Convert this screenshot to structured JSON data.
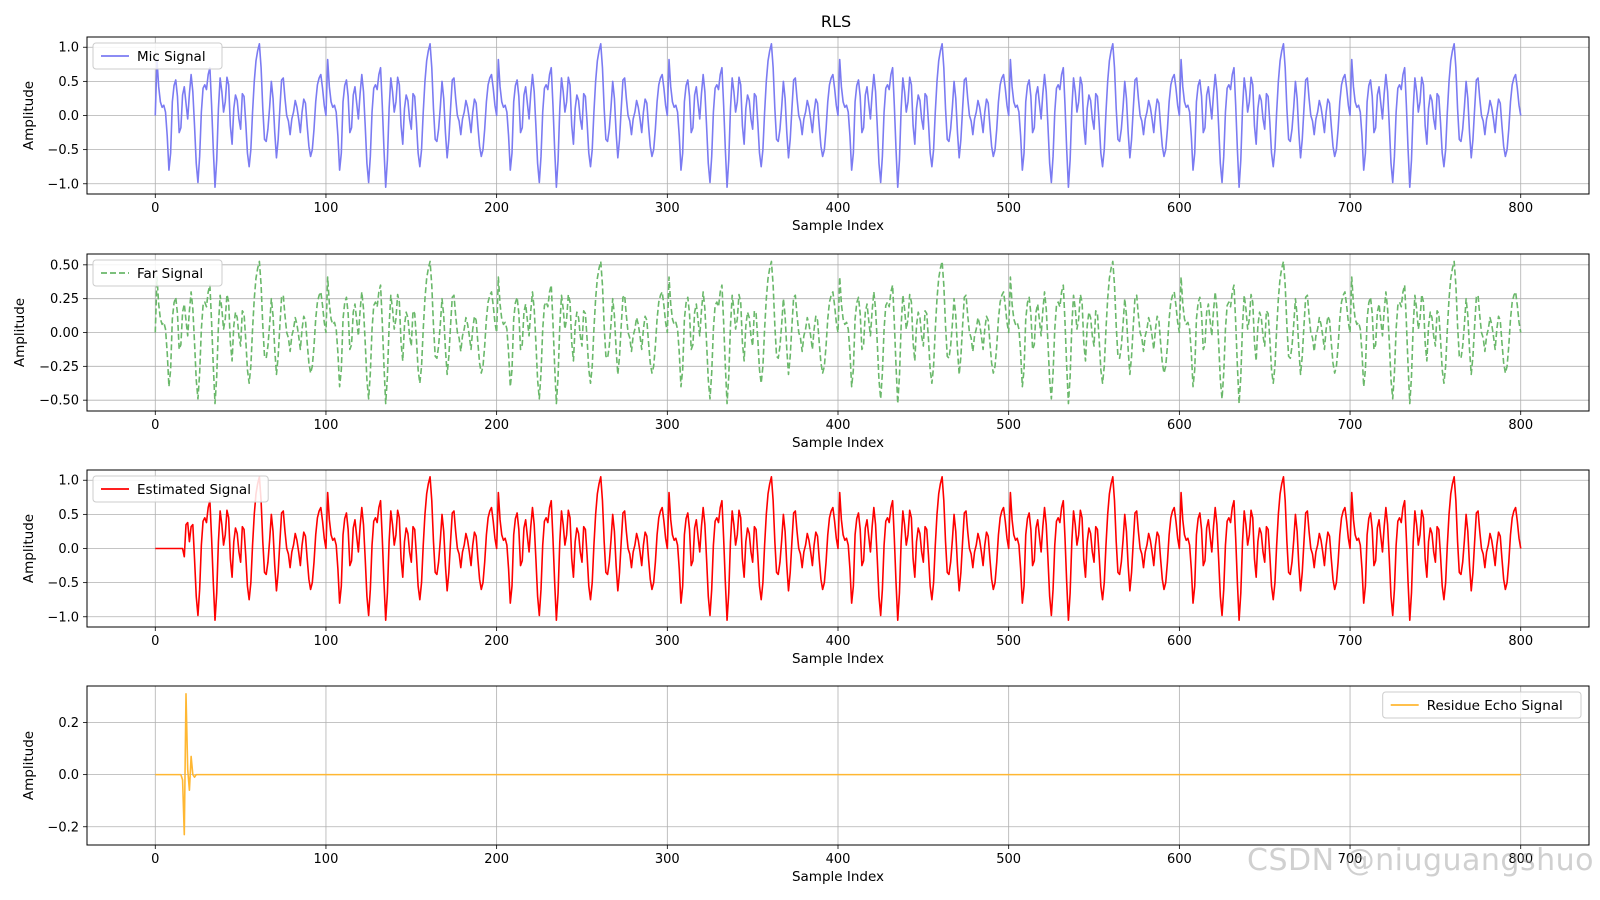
{
  "figure": {
    "title": "RLS",
    "watermark": "CSDN @niuguangshuo"
  },
  "chart_data": [
    {
      "type": "line",
      "id": "mic",
      "xlabel": "Sample Index",
      "ylabel": "Amplitude",
      "xlim": [
        -40,
        840
      ],
      "ylim": [
        -1.15,
        1.15
      ],
      "xticks": [
        0,
        100,
        200,
        300,
        400,
        500,
        600,
        700,
        800
      ],
      "yticks": [
        -1.0,
        -0.5,
        0.0,
        0.5,
        1.0
      ],
      "ytick_labels": [
        "−1.0",
        "−0.5",
        "0.0",
        "0.5",
        "1.0"
      ],
      "grid": true,
      "legend_position": "upper-left",
      "series": [
        {
          "name": "Mic Signal",
          "color": "#7b7bf2",
          "line_style": "solid",
          "generator": "periodic",
          "period": 100,
          "x_range": [
            0,
            800
          ],
          "amplitude_scale": 1.0,
          "period_values": [
            0,
            0.82,
            0.42,
            0.2,
            0.12,
            0.15,
            0.05,
            -0.3,
            -0.8,
            -0.55,
            0.2,
            0.44,
            0.52,
            0.28,
            -0.25,
            -0.18,
            0.3,
            0.42,
            0.18,
            -0.05,
            0.32,
            0.6,
            0.35,
            -0.15,
            -0.7,
            -0.98,
            -0.6,
            0.05,
            0.4,
            0.45,
            0.38,
            0.6,
            0.7,
            0.15,
            -0.5,
            -1.05,
            -0.65,
            0.1,
            0.55,
            0.35,
            0.05,
            0.2,
            0.56,
            0.45,
            -0.15,
            -0.42,
            0.1,
            0.3,
            0.22,
            -0.05,
            -0.2,
            0.32,
            0.28,
            -0.1,
            -0.55,
            -0.75,
            -0.5,
            0.05,
            0.5,
            0.8,
            0.95,
            1.05,
            0.7,
            0.1,
            -0.35,
            -0.38,
            -0.2,
            0.12,
            0.5,
            0.25,
            -0.25,
            -0.62,
            -0.35,
            0.1,
            0.52,
            0.55,
            0.25,
            0.0,
            -0.08,
            -0.28,
            -0.05,
            0.05,
            0.22,
            0.12,
            -0.05,
            -0.25,
            0.05,
            0.24,
            0.18,
            -0.15,
            -0.45,
            -0.6,
            -0.5,
            -0.2,
            0.2,
            0.45,
            0.55,
            0.6,
            0.4,
            0.15
          ]
        }
      ]
    },
    {
      "type": "line",
      "id": "far",
      "xlabel": "Sample Index",
      "ylabel": "Amplitude",
      "xlim": [
        -40,
        840
      ],
      "ylim": [
        -0.58,
        0.58
      ],
      "xticks": [
        0,
        100,
        200,
        300,
        400,
        500,
        600,
        700,
        800
      ],
      "yticks": [
        -0.5,
        -0.25,
        0.0,
        0.25,
        0.5
      ],
      "ytick_labels": [
        "−0.50",
        "−0.25",
        "0.00",
        "0.25",
        "0.50"
      ],
      "grid": true,
      "legend_position": "upper-left",
      "series": [
        {
          "name": "Far Signal",
          "color": "#6ab86a",
          "line_style": "dashed",
          "generator": "periodic",
          "period": 100,
          "x_range": [
            0,
            800
          ],
          "amplitude_scale": 0.5,
          "period_values": [
            0,
            0.82,
            0.42,
            0.2,
            0.12,
            0.15,
            0.05,
            -0.3,
            -0.8,
            -0.55,
            0.2,
            0.44,
            0.52,
            0.28,
            -0.25,
            -0.18,
            0.3,
            0.42,
            0.18,
            -0.05,
            0.32,
            0.6,
            0.35,
            -0.15,
            -0.7,
            -0.98,
            -0.6,
            0.05,
            0.4,
            0.45,
            0.38,
            0.6,
            0.7,
            0.15,
            -0.5,
            -1.05,
            -0.65,
            0.1,
            0.55,
            0.35,
            0.05,
            0.2,
            0.56,
            0.45,
            -0.15,
            -0.42,
            0.1,
            0.3,
            0.22,
            -0.05,
            -0.2,
            0.32,
            0.28,
            -0.1,
            -0.55,
            -0.75,
            -0.5,
            0.05,
            0.5,
            0.8,
            0.95,
            1.05,
            0.7,
            0.1,
            -0.35,
            -0.38,
            -0.2,
            0.12,
            0.5,
            0.25,
            -0.25,
            -0.62,
            -0.35,
            0.1,
            0.52,
            0.55,
            0.25,
            0.0,
            -0.08,
            -0.28,
            -0.05,
            0.05,
            0.22,
            0.12,
            -0.05,
            -0.25,
            0.05,
            0.24,
            0.18,
            -0.15,
            -0.45,
            -0.6,
            -0.5,
            -0.2,
            0.2,
            0.45,
            0.55,
            0.6,
            0.4,
            0.15
          ]
        }
      ]
    },
    {
      "type": "line",
      "id": "estimated",
      "xlabel": "Sample Index",
      "ylabel": "Amplitude",
      "xlim": [
        -40,
        840
      ],
      "ylim": [
        -1.15,
        1.15
      ],
      "xticks": [
        0,
        100,
        200,
        300,
        400,
        500,
        600,
        700,
        800
      ],
      "yticks": [
        -1.0,
        -0.5,
        0.0,
        0.5,
        1.0
      ],
      "ytick_labels": [
        "−1.0",
        "−0.5",
        "0.0",
        "0.5",
        "1.0"
      ],
      "grid": true,
      "legend_position": "upper-left",
      "series": [
        {
          "name": "Estimated Signal",
          "color": "#ff0000",
          "line_style": "solid",
          "generator": "periodic",
          "period": 100,
          "x_range": [
            0,
            800
          ],
          "amplitude_scale": 1.0,
          "zero_until": 16,
          "onset_points": [
            [
              17,
              -0.12
            ],
            [
              18,
              0.35
            ],
            [
              19,
              0.38
            ],
            [
              20,
              0.1
            ],
            [
              21,
              0.32
            ]
          ],
          "period_values": [
            0,
            0.82,
            0.42,
            0.2,
            0.12,
            0.15,
            0.05,
            -0.3,
            -0.8,
            -0.55,
            0.2,
            0.44,
            0.52,
            0.28,
            -0.25,
            -0.18,
            0.3,
            0.42,
            0.18,
            -0.05,
            0.32,
            0.6,
            0.35,
            -0.15,
            -0.7,
            -0.98,
            -0.6,
            0.05,
            0.4,
            0.45,
            0.38,
            0.6,
            0.7,
            0.15,
            -0.5,
            -1.05,
            -0.65,
            0.1,
            0.55,
            0.35,
            0.05,
            0.2,
            0.56,
            0.45,
            -0.15,
            -0.42,
            0.1,
            0.3,
            0.22,
            -0.05,
            -0.2,
            0.32,
            0.28,
            -0.1,
            -0.55,
            -0.75,
            -0.5,
            0.05,
            0.5,
            0.8,
            0.95,
            1.05,
            0.7,
            0.1,
            -0.35,
            -0.38,
            -0.2,
            0.12,
            0.5,
            0.25,
            -0.25,
            -0.62,
            -0.35,
            0.1,
            0.52,
            0.55,
            0.25,
            0.0,
            -0.08,
            -0.28,
            -0.05,
            0.05,
            0.22,
            0.12,
            -0.05,
            -0.25,
            0.05,
            0.24,
            0.18,
            -0.15,
            -0.45,
            -0.6,
            -0.5,
            -0.2,
            0.2,
            0.45,
            0.55,
            0.6,
            0.4,
            0.15
          ]
        }
      ]
    },
    {
      "type": "line",
      "id": "residue",
      "xlabel": "Sample Index",
      "ylabel": "Amplitude",
      "xlim": [
        -40,
        840
      ],
      "ylim": [
        -0.27,
        0.34
      ],
      "xticks": [
        0,
        100,
        200,
        300,
        400,
        500,
        600,
        700,
        800
      ],
      "yticks": [
        -0.2,
        0.0,
        0.2
      ],
      "ytick_labels": [
        "−0.2",
        "0.0",
        "0.2"
      ],
      "grid": true,
      "legend_position": "upper-right",
      "series": [
        {
          "name": "Residue Echo Signal",
          "color": "#ffb732",
          "line_style": "solid",
          "generator": "points",
          "points": [
            [
              0,
              0
            ],
            [
              15,
              0
            ],
            [
              16,
              -0.02
            ],
            [
              17,
              -0.23
            ],
            [
              18,
              0.31
            ],
            [
              19,
              0.02
            ],
            [
              20,
              -0.06
            ],
            [
              21,
              0.07
            ],
            [
              22,
              0.0
            ],
            [
              23,
              -0.01
            ],
            [
              24,
              0.0
            ],
            [
              800,
              0
            ]
          ]
        }
      ]
    }
  ]
}
